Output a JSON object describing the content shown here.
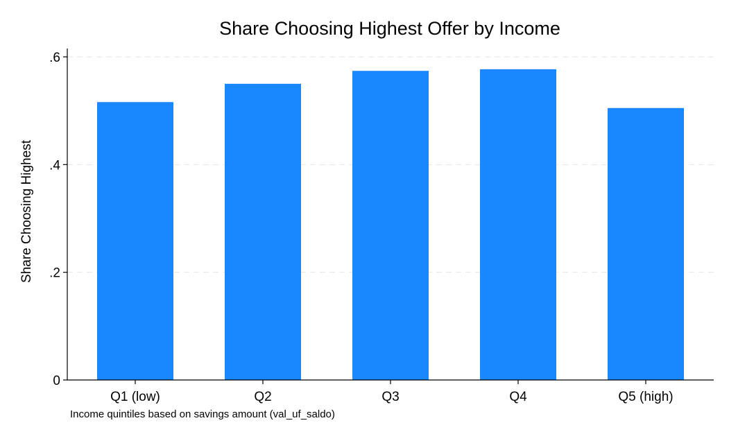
{
  "chart_data": {
    "type": "bar",
    "title": "Share Choosing Highest Offer by Income",
    "xlabel": "",
    "ylabel": "Share Choosing Highest",
    "note": "Income quintiles based on savings amount (val_uf_saldo)",
    "categories": [
      "Q1 (low)",
      "Q2",
      "Q3",
      "Q4",
      "Q5 (high)"
    ],
    "values": [
      0.516,
      0.55,
      0.574,
      0.577,
      0.505
    ],
    "ylim": [
      0,
      0.6
    ],
    "yticks": [
      0,
      0.2,
      0.4,
      0.6
    ],
    "ytick_labels": [
      "0",
      ".2",
      ".4",
      ".6"
    ],
    "grid": true,
    "bar_color": "#1a86ff",
    "grid_color": "#e6e6e6"
  }
}
